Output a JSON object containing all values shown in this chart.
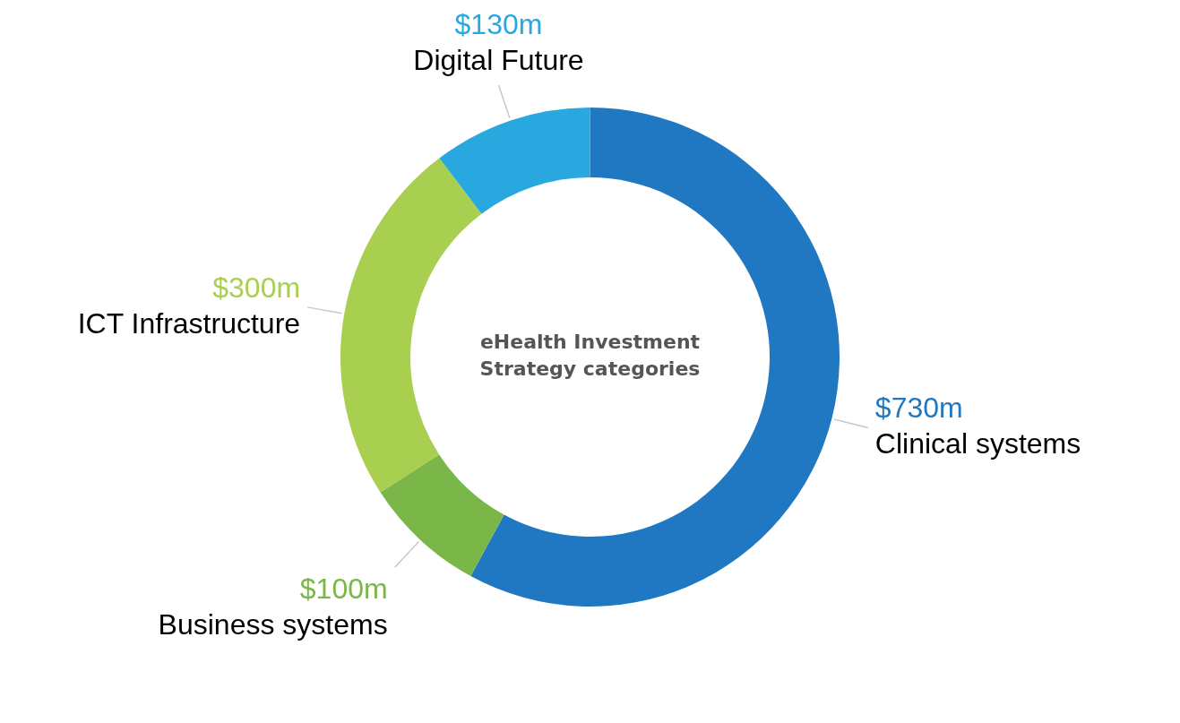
{
  "chart_data": {
    "type": "donut",
    "title": "eHealth Investment Strategy categories",
    "categories": [
      "Clinical systems",
      "Business systems",
      "ICT Infrastructure",
      "Digital Future"
    ],
    "values": [
      730,
      100,
      300,
      130
    ],
    "colors": [
      "#1f78c1",
      "#7ab648",
      "#a8cf50",
      "#29a8e0"
    ],
    "value_labels": [
      "$730m",
      "$100m",
      "$300m",
      "$130m"
    ],
    "legend": false
  }
}
